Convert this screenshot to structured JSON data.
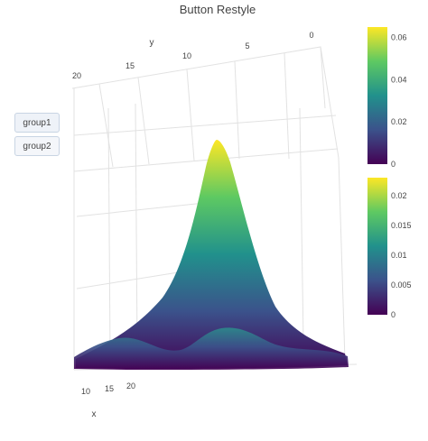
{
  "chart_data": {
    "type": "surface",
    "title": "Button Restyle",
    "colorscale": "viridis",
    "colorscale_colors": [
      "#440154",
      "#3b528b",
      "#21918c",
      "#5ec962",
      "#fde725"
    ],
    "axes": {
      "x": {
        "label": "x",
        "ticks": [
          "10",
          "15",
          "20"
        ]
      },
      "y": {
        "label": "y",
        "ticks": [
          "20",
          "15",
          "10",
          "5",
          "0"
        ]
      },
      "z": {
        "label": "",
        "ticks": []
      }
    },
    "surfaces": [
      {
        "name": "group1",
        "shape": "2D Gaussian peak centered on the grid",
        "zmin": 0,
        "zmax": 0.065,
        "colorbar": {
          "ticks": [
            "0",
            "0.02",
            "0.04",
            "0.06"
          ],
          "tick_values": [
            0,
            0.02,
            0.04,
            0.06
          ]
        }
      },
      {
        "name": "group2",
        "shape": "low wavy surface near zero",
        "zmin": 0,
        "zmax": 0.023,
        "colorbar": {
          "ticks": [
            "0",
            "0.005",
            "0.01",
            "0.015",
            "0.02"
          ],
          "tick_values": [
            0,
            0.005,
            0.01,
            0.015,
            0.02
          ]
        }
      }
    ]
  },
  "buttons": [
    {
      "label": "group1"
    },
    {
      "label": "group2"
    }
  ]
}
